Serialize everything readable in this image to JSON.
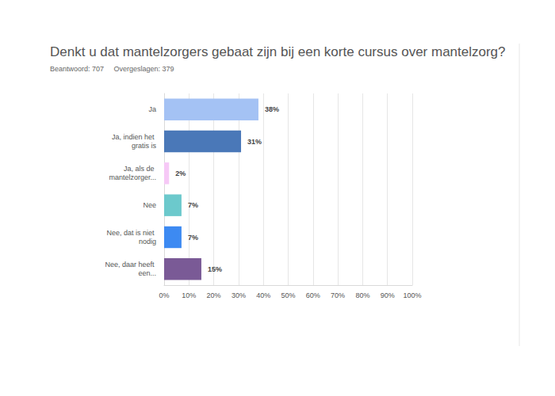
{
  "chart_data": {
    "type": "bar",
    "orientation": "horizontal",
    "title": "Denkt u dat mantelzorgers gebaat zijn bij een korte cursus over mantelzorg?",
    "subtitle": "Beantwoord: 707     Overgeslagen: 379",
    "categories": [
      "Ja",
      "Ja, indien het gratis is",
      "Ja, als de mantelzorger...",
      "Nee",
      "Nee, dat is niet nodig",
      "Nee, daar heeft een..."
    ],
    "values": [
      38,
      31,
      2,
      7,
      7,
      15
    ],
    "value_labels": [
      "38%",
      "31%",
      "2%",
      "7%",
      "7%",
      "15%"
    ],
    "colors": [
      "#a4c2f4",
      "#4a78b8",
      "#f6c9f6",
      "#6cc9cc",
      "#3d8af2",
      "#7a5a96"
    ],
    "data_labels": true,
    "xlim": [
      0,
      100
    ],
    "xticks": [
      {
        "value": 0,
        "label": "0%"
      },
      {
        "value": 10,
        "label": "10%"
      },
      {
        "value": 20,
        "label": "20%"
      },
      {
        "value": 30,
        "label": "30%"
      },
      {
        "value": 40,
        "label": "40%"
      },
      {
        "value": 50,
        "label": "50%"
      },
      {
        "value": 60,
        "label": "60%"
      },
      {
        "value": 70,
        "label": "70%"
      },
      {
        "value": 80,
        "label": "80%"
      },
      {
        "value": 90,
        "label": "90%"
      },
      {
        "value": 100,
        "label": "100%"
      }
    ],
    "grid": true
  }
}
